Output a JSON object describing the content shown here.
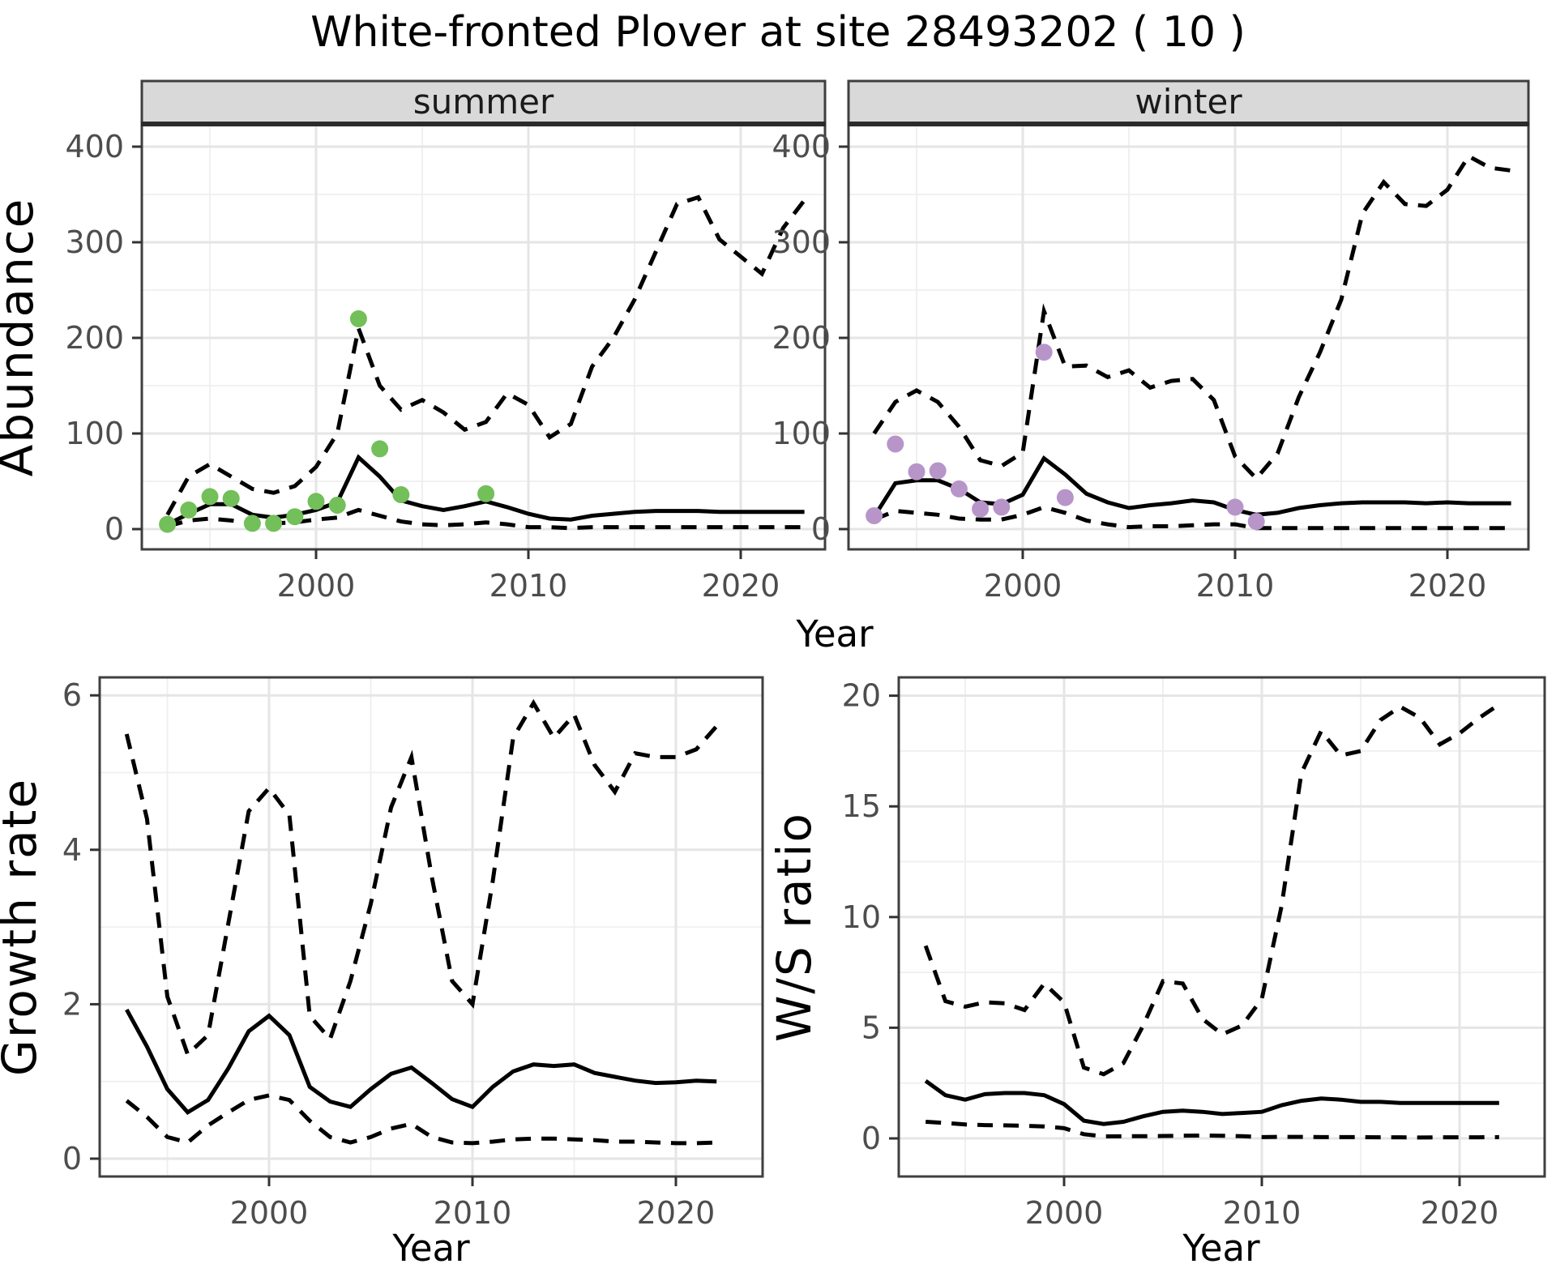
{
  "title": "White-fronted Plover at site 28493202 ( 10 )",
  "colors": {
    "summer_point": "#73BF59",
    "winter_point": "#B795C9",
    "line": "#000000",
    "strip_bg": "#D9D9D9",
    "panel_border": "#3F3F3F",
    "grid_major": "#E5E5E5",
    "grid_minor": "#EFEFEF",
    "tick_text": "#4D4D4D",
    "title_text": "#000000"
  },
  "chart_data": [
    {
      "id": "abundance-summer",
      "type": "line",
      "facet_label": "summer",
      "xlabel": "Year",
      "ylabel": "Abundance",
      "xlim": [
        1991.8,
        2024.0
      ],
      "ylim": [
        -21,
        424
      ],
      "x_ticks": [
        2000,
        2010,
        2020
      ],
      "x_minor_ticks": [
        1995,
        2005,
        2015
      ],
      "y_ticks": [
        0,
        100,
        200,
        300,
        400
      ],
      "y_minor_ticks": [
        50,
        150,
        250,
        350
      ],
      "legend": "none",
      "grid": "on",
      "x": [
        1993,
        1994,
        1995,
        1996,
        1997,
        1998,
        1999,
        2000,
        2001,
        2002,
        2003,
        2004,
        2005,
        2006,
        2007,
        2008,
        2009,
        2010,
        2011,
        2012,
        2013,
        2014,
        2015,
        2016,
        2017,
        2018,
        2019,
        2020,
        2021,
        2022,
        2023
      ],
      "series": [
        {
          "name": "upper CI",
          "style": "dashed",
          "values": [
            15,
            55,
            68,
            55,
            42,
            38,
            45,
            65,
            100,
            210,
            150,
            125,
            135,
            122,
            104,
            112,
            142,
            130,
            96,
            110,
            170,
            200,
            240,
            290,
            340,
            347,
            303,
            285,
            267,
            315,
            344
          ]
        },
        {
          "name": "median estimate",
          "style": "solid",
          "values": [
            5,
            16,
            26,
            26,
            15,
            12,
            15,
            20,
            28,
            75,
            55,
            30,
            24,
            20,
            24,
            29,
            23,
            16,
            11,
            10,
            14,
            16,
            18,
            19,
            19,
            19,
            18,
            18,
            18,
            18,
            18
          ]
        },
        {
          "name": "lower CI",
          "style": "dashed",
          "values": [
            3,
            9,
            11,
            9,
            6,
            6,
            7,
            10,
            12,
            20,
            14,
            8,
            5,
            4,
            5,
            7,
            5,
            2,
            2,
            1,
            2,
            2,
            2,
            2,
            2,
            2,
            2,
            2,
            2,
            2,
            2
          ]
        }
      ],
      "points": {
        "name": "observed summer counts",
        "color": "#73BF59",
        "x": [
          1993,
          1994,
          1995,
          1996,
          1997,
          1998,
          1999,
          2000,
          2001,
          2002,
          2003,
          2004,
          2008
        ],
        "y": [
          5,
          20,
          34,
          32,
          6,
          6,
          13,
          29,
          25,
          220,
          84,
          36,
          37
        ]
      }
    },
    {
      "id": "abundance-winter",
      "type": "line",
      "facet_label": "winter",
      "xlabel": "Year",
      "ylabel": "Abundance",
      "xlim": [
        1991.8,
        2023.8
      ],
      "ylim": [
        -21,
        424
      ],
      "x_ticks": [
        2000,
        2010,
        2020
      ],
      "x_minor_ticks": [
        1995,
        2005,
        2015
      ],
      "y_ticks": [
        0,
        100,
        200,
        300,
        400
      ],
      "y_minor_ticks": [
        50,
        150,
        250,
        350
      ],
      "legend": "none",
      "grid": "on",
      "x": [
        1993,
        1994,
        1995,
        1996,
        1997,
        1998,
        1999,
        2000,
        2001,
        2002,
        2003,
        2004,
        2005,
        2006,
        2007,
        2008,
        2009,
        2010,
        2011,
        2012,
        2013,
        2014,
        2015,
        2016,
        2017,
        2018,
        2019,
        2020,
        2021,
        2022,
        2023
      ],
      "series": [
        {
          "name": "upper CI",
          "style": "dashed",
          "values": [
            100,
            133,
            145,
            133,
            107,
            72,
            66,
            80,
            228,
            170,
            171,
            159,
            166,
            148,
            155,
            157,
            135,
            76,
            53,
            79,
            138,
            185,
            240,
            330,
            363,
            340,
            338,
            355,
            390,
            378,
            375
          ]
        },
        {
          "name": "median estimate",
          "style": "solid",
          "values": [
            13,
            48,
            51,
            51,
            42,
            28,
            26,
            36,
            74,
            57,
            37,
            28,
            22,
            25,
            27,
            30,
            28,
            20,
            15,
            17,
            22,
            25,
            27,
            28,
            28,
            28,
            27,
            28,
            27,
            27,
            27
          ]
        },
        {
          "name": "lower CI",
          "style": "dashed",
          "values": [
            10,
            19,
            17,
            15,
            11,
            10,
            10,
            15,
            23,
            17,
            9,
            5,
            2,
            3,
            3,
            4,
            5,
            5,
            1,
            1,
            1,
            1,
            1,
            1,
            1,
            1,
            1,
            1,
            1,
            1,
            1
          ]
        }
      ],
      "points": {
        "name": "observed winter counts",
        "color": "#B795C9",
        "x": [
          1993,
          1994,
          1995,
          1996,
          1997,
          1998,
          1999,
          2001,
          2002,
          2010,
          2011
        ],
        "y": [
          14,
          89,
          60,
          61,
          42,
          21,
          23,
          185,
          33,
          23,
          8
        ]
      }
    },
    {
      "id": "growth-rate",
      "type": "line",
      "facet_label": null,
      "xlabel": "Year",
      "ylabel": "Growth rate",
      "xlim": [
        1991.7,
        2024.3
      ],
      "ylim": [
        -0.23,
        6.23
      ],
      "x_ticks": [
        2000,
        2010,
        2020
      ],
      "x_minor_ticks": [
        1995,
        2005,
        2015
      ],
      "y_ticks": [
        0,
        2,
        4,
        6
      ],
      "y_minor_ticks": [
        1,
        3,
        5
      ],
      "legend": "none",
      "grid": "on",
      "x": [
        1993,
        1994,
        1995,
        1996,
        1997,
        1998,
        1999,
        2000,
        2001,
        2002,
        2003,
        2004,
        2005,
        2006,
        2007,
        2008,
        2009,
        2010,
        2011,
        2012,
        2013,
        2014,
        2015,
        2016,
        2017,
        2018,
        2019,
        2020,
        2021,
        2022
      ],
      "series": [
        {
          "name": "upper CI",
          "style": "dashed",
          "values": [
            5.5,
            4.4,
            2.1,
            1.35,
            1.6,
            3.05,
            4.5,
            4.8,
            4.45,
            1.85,
            1.55,
            2.3,
            3.3,
            4.55,
            5.2,
            3.65,
            2.3,
            2.0,
            3.6,
            5.45,
            5.9,
            5.45,
            5.75,
            5.1,
            4.75,
            5.25,
            5.2,
            5.2,
            5.3,
            5.6
          ]
        },
        {
          "name": "median estimate",
          "style": "solid",
          "values": [
            1.93,
            1.45,
            0.9,
            0.6,
            0.76,
            1.17,
            1.65,
            1.85,
            1.6,
            0.93,
            0.74,
            0.67,
            0.9,
            1.1,
            1.18,
            0.98,
            0.77,
            0.67,
            0.93,
            1.13,
            1.22,
            1.2,
            1.22,
            1.11,
            1.06,
            1.01,
            0.98,
            0.99,
            1.01,
            1.0
          ]
        },
        {
          "name": "lower CI",
          "style": "dashed",
          "values": [
            0.75,
            0.54,
            0.28,
            0.21,
            0.43,
            0.6,
            0.76,
            0.82,
            0.76,
            0.49,
            0.28,
            0.21,
            0.28,
            0.39,
            0.45,
            0.28,
            0.21,
            0.2,
            0.22,
            0.25,
            0.26,
            0.26,
            0.25,
            0.24,
            0.22,
            0.22,
            0.21,
            0.2,
            0.2,
            0.21
          ]
        }
      ],
      "points": null
    },
    {
      "id": "ws-ratio",
      "type": "line",
      "facet_label": null,
      "xlabel": "Year",
      "ylabel": "W/S ratio",
      "xlim": [
        1991.6,
        2024.3
      ],
      "ylim": [
        -1.7,
        20.8
      ],
      "x_ticks": [
        2000,
        2010,
        2020
      ],
      "x_minor_ticks": [
        1995,
        2005,
        2015
      ],
      "y_ticks": [
        0,
        5,
        10,
        15,
        20
      ],
      "y_minor_ticks": [
        2.5,
        7.5,
        12.5,
        17.5
      ],
      "legend": "none",
      "grid": "on",
      "x": [
        1993,
        1994,
        1995,
        1996,
        1997,
        1998,
        1999,
        2000,
        2001,
        2002,
        2003,
        2004,
        2005,
        2006,
        2007,
        2008,
        2009,
        2010,
        2011,
        2012,
        2013,
        2014,
        2015,
        2016,
        2017,
        2018,
        2019,
        2020,
        2021,
        2022
      ],
      "series": [
        {
          "name": "upper CI",
          "style": "dashed",
          "values": [
            8.7,
            6.2,
            5.95,
            6.15,
            6.1,
            5.8,
            7.0,
            6.15,
            3.2,
            2.9,
            3.4,
            5.1,
            7.1,
            7.0,
            5.4,
            4.7,
            5.1,
            6.3,
            10.5,
            16.5,
            18.4,
            17.3,
            17.5,
            18.9,
            19.5,
            19.0,
            17.8,
            18.3,
            19.0,
            19.6
          ]
        },
        {
          "name": "median estimate",
          "style": "solid",
          "values": [
            2.6,
            1.95,
            1.75,
            2.0,
            2.05,
            2.05,
            1.95,
            1.55,
            0.8,
            0.65,
            0.75,
            1.0,
            1.2,
            1.25,
            1.2,
            1.1,
            1.15,
            1.2,
            1.5,
            1.7,
            1.8,
            1.75,
            1.65,
            1.65,
            1.6,
            1.6,
            1.6,
            1.6,
            1.6,
            1.6
          ]
        },
        {
          "name": "lower CI",
          "style": "dashed",
          "values": [
            0.75,
            0.7,
            0.63,
            0.6,
            0.59,
            0.57,
            0.54,
            0.46,
            0.19,
            0.09,
            0.1,
            0.1,
            0.11,
            0.12,
            0.13,
            0.12,
            0.1,
            0.06,
            0.07,
            0.07,
            0.06,
            0.06,
            0.06,
            0.05,
            0.05,
            0.04,
            0.05,
            0.05,
            0.05,
            0.06
          ]
        }
      ],
      "points": null
    }
  ]
}
